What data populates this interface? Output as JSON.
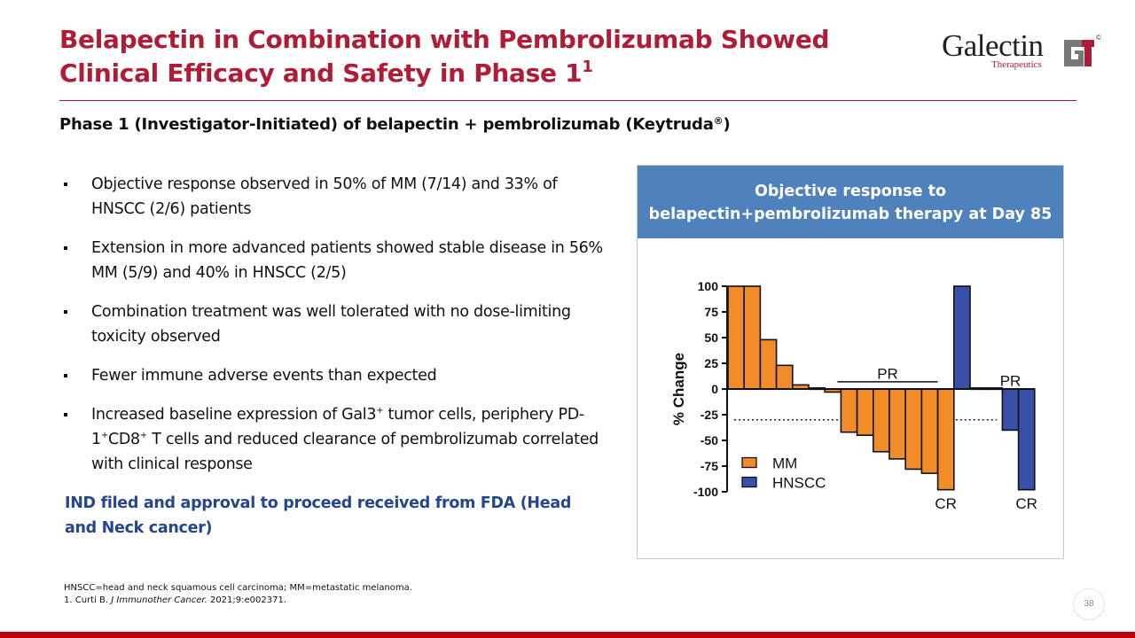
{
  "slide": {
    "title_line1": "Belapectin in Combination with Pembrolizumab Showed",
    "title_line2": "Clinical Efficacy and Safety in Phase 1",
    "title_sup": "1",
    "subtitle": "Phase 1 (Investigator-Initiated) of belapectin + pembrolizumab (Keytruda",
    "subtitle_reg": "®",
    "subtitle_close": ")",
    "page_number": "38"
  },
  "logo": {
    "word": "Galectin",
    "sub": "Therapeutics",
    "reg": "©",
    "brand_red": "#b01c35",
    "brand_gray": "#777777"
  },
  "bullets": [
    {
      "text": "Objective response observed in 50% of MM (7/14) and 33% of HNSCC (2/6) patients"
    },
    {
      "text": "Extension in more advanced patients showed stable disease in 56% MM (5/9) and 40% in HNSCC (2/5)"
    },
    {
      "text": "Combination treatment was well tolerated with no dose-limiting toxicity observed"
    },
    {
      "text": "Fewer immune adverse events than expected"
    },
    {
      "p1": "Increased baseline expression of Gal3",
      "s1": "+",
      "p2": " tumor cells, periphery PD-1",
      "s2": "+",
      "p3": "CD8",
      "s3": "+",
      "p4": " T cells and reduced clearance of pembrolizumab correlated with clinical response"
    }
  ],
  "callout": "IND filed and approval to proceed received from FDA (Head and Neck cancer)",
  "chart_panel": {
    "title_line1": "Objective response to",
    "title_line2": "belapectin+pembrolizumab therapy at Day 85",
    "header_color": "#4f81bd"
  },
  "chart_data": {
    "type": "bar",
    "ylabel": "% Change",
    "ylim": [
      -100,
      100
    ],
    "yticks": [
      "100",
      "75",
      "50",
      "25",
      "0",
      "-25",
      "-50",
      "-75",
      "-100"
    ],
    "series": [
      {
        "name": "MM",
        "color": "#f28c28",
        "values": [
          100,
          100,
          48,
          23,
          4,
          1,
          -3,
          -42,
          -45,
          -61,
          -68,
          -78,
          -82,
          -98
        ]
      },
      {
        "name": "HNSCC",
        "color": "#3a4fa8",
        "values": [
          100,
          1,
          1,
          -40,
          -98
        ]
      }
    ],
    "reference_line": -30,
    "annotations": [
      "PR",
      "CR",
      "PR",
      "CR"
    ]
  },
  "footnote": {
    "line1": "HNSCC=head and neck squamous cell carcinoma; MM=metastatic melanoma.",
    "line2_prefix": "1. Curti B. ",
    "line2_journal": "J Immunother Cancer.",
    "line2_suffix": " 2021;9:e002371."
  },
  "colors": {
    "title_red": "#b01c35",
    "callout_blue": "#23468f",
    "bottom_bar": "#c00000"
  }
}
